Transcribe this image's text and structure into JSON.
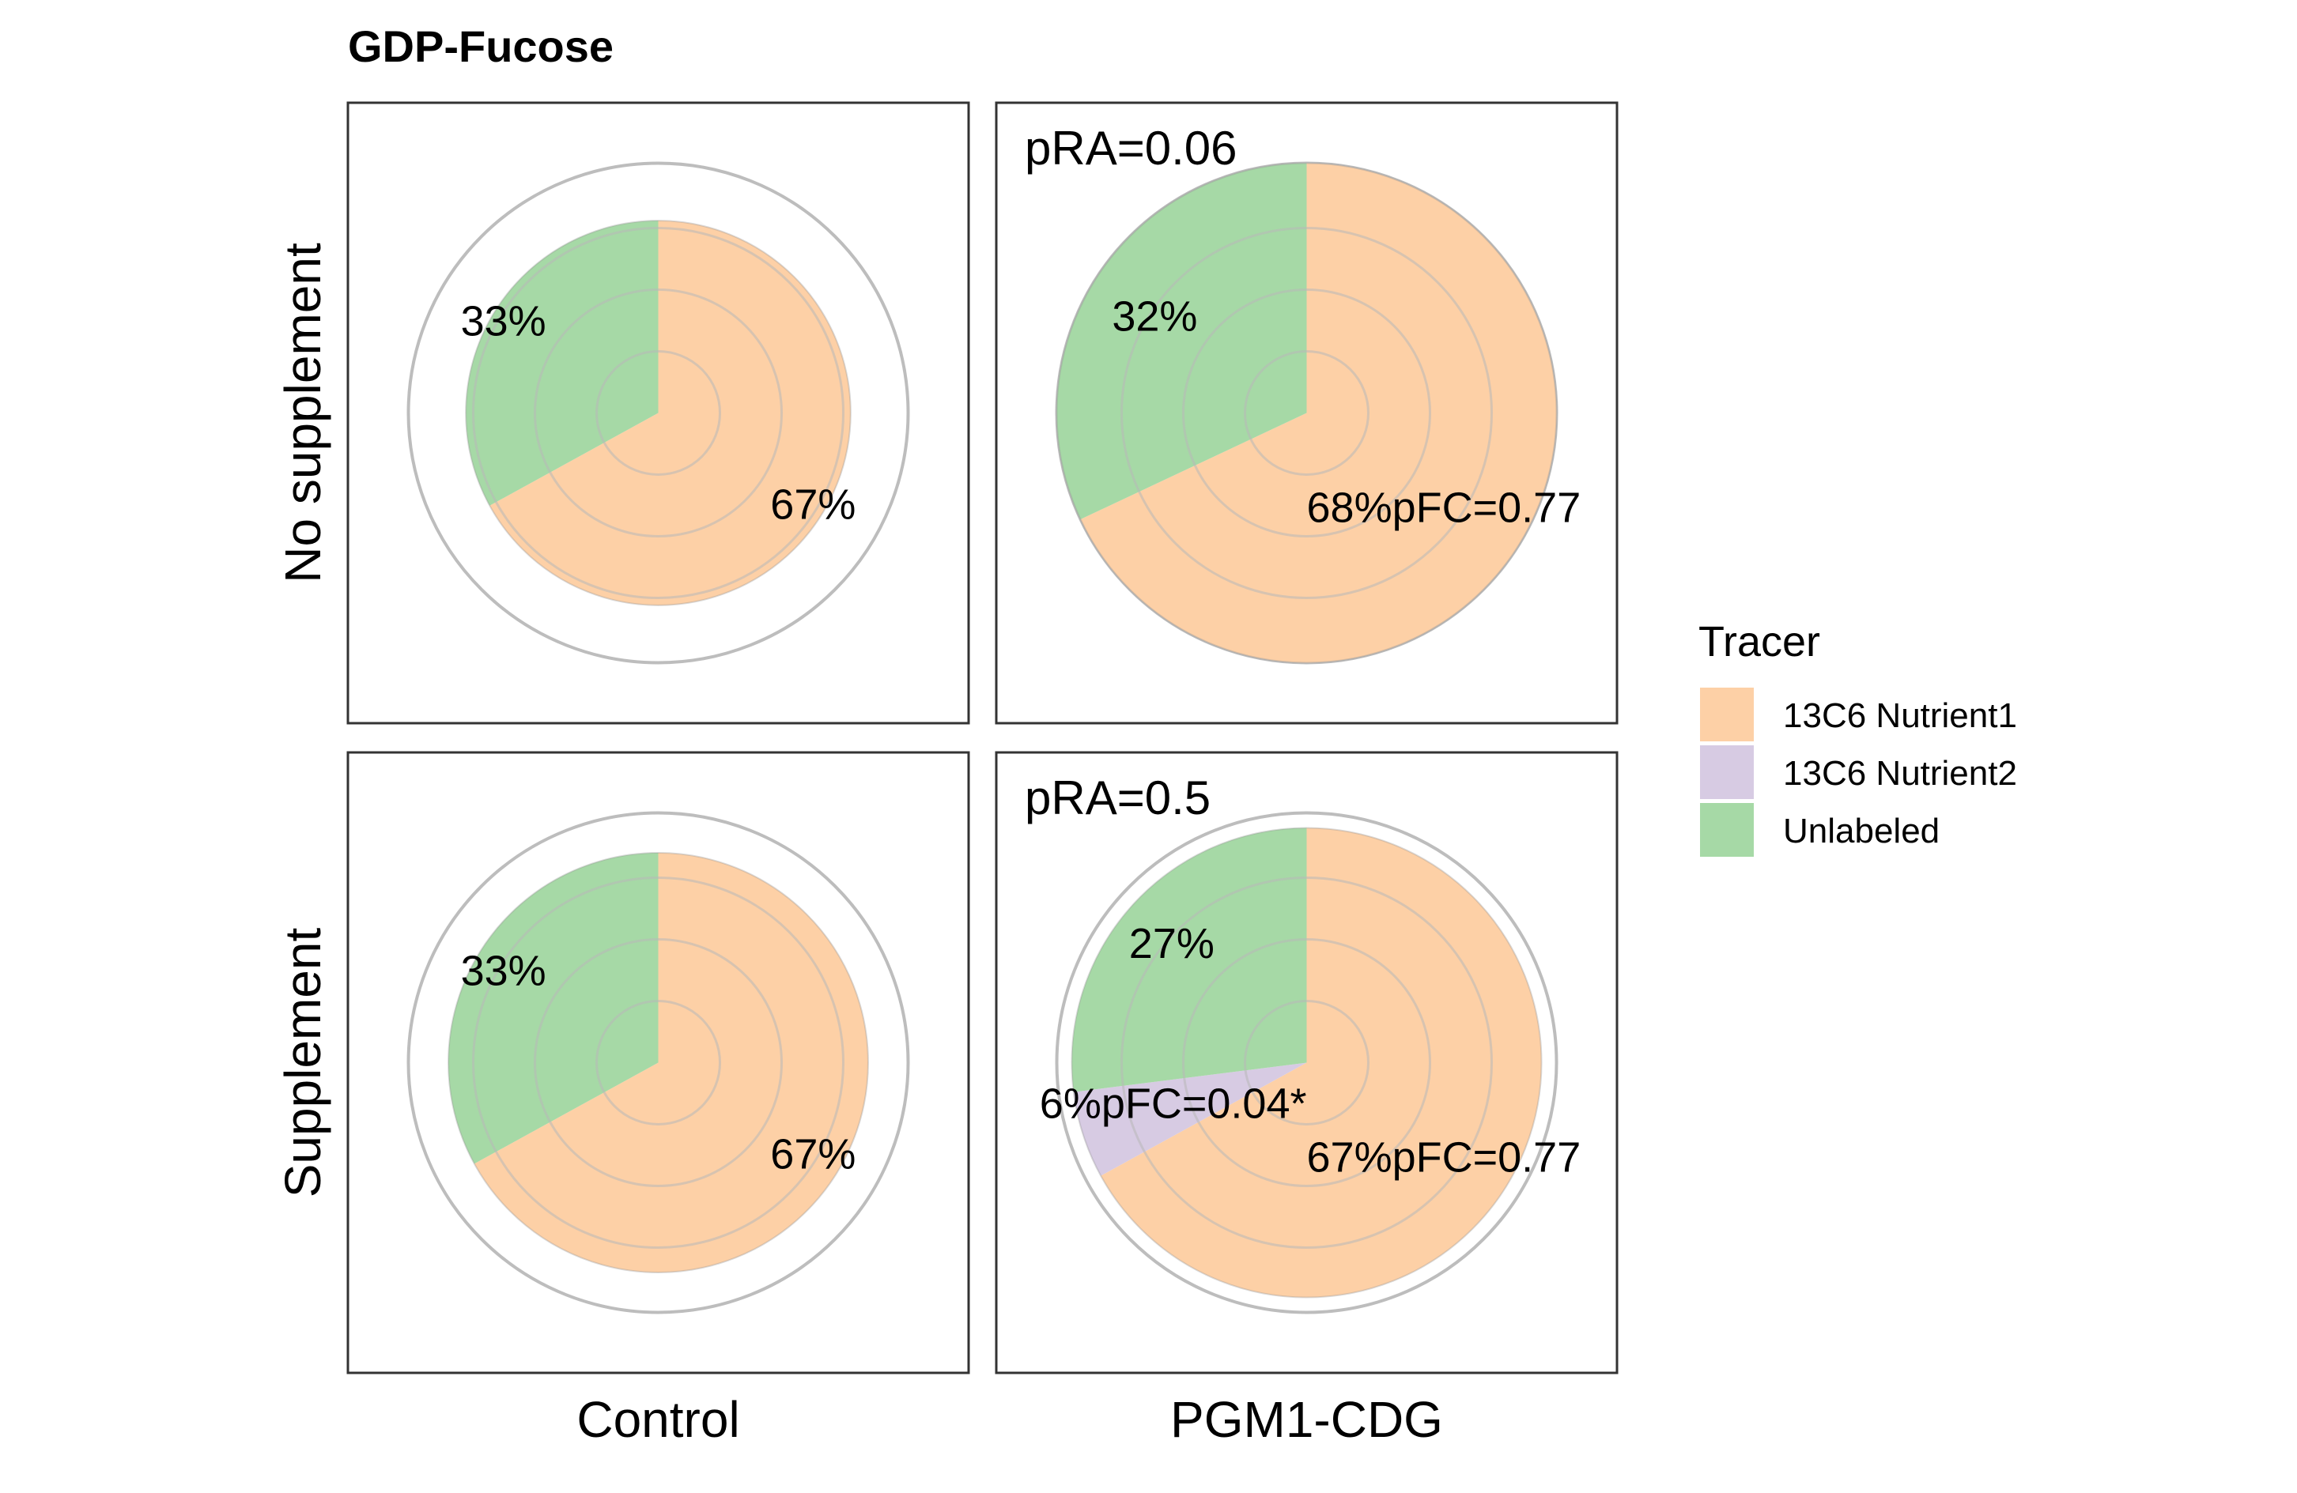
{
  "chart_data": {
    "type": "pie",
    "title": "GDP-Fucose",
    "facet_columns": [
      "Control",
      "PGM1-CDG"
    ],
    "facet_rows": [
      "No supplement",
      "Supplement"
    ],
    "legend": {
      "title": "Tracer",
      "position": "right",
      "entries": [
        "13C6 Nutrient1",
        "13C6 Nutrient2",
        "Unlabeled"
      ]
    },
    "colors": {
      "13C6 Nutrient1": "#fdd0a6",
      "13C6 Nutrient2": "#d7cbe3",
      "Unlabeled": "#a6d9a6",
      "panel_border": "#333333",
      "guide_circle": "#bdbdbd",
      "inner_grid": "#b8b8b8"
    },
    "panels": [
      {
        "row": "No supplement",
        "column": "Control",
        "relative_abundance": 0.77,
        "annotation": "",
        "slices": [
          {
            "tracer": "13C6 Nutrient1",
            "value": 67,
            "label": "67%"
          },
          {
            "tracer": "13C6 Nutrient2",
            "value": 0,
            "label": ""
          },
          {
            "tracer": "Unlabeled",
            "value": 33,
            "label": "33%"
          }
        ]
      },
      {
        "row": "No supplement",
        "column": "PGM1-CDG",
        "relative_abundance": 1.0,
        "annotation": "pRA=0.06",
        "slices": [
          {
            "tracer": "13C6 Nutrient1",
            "value": 68,
            "label": "68%pFC=0.77"
          },
          {
            "tracer": "13C6 Nutrient2",
            "value": 0,
            "label": ""
          },
          {
            "tracer": "Unlabeled",
            "value": 32,
            "label": "32%"
          }
        ]
      },
      {
        "row": "Supplement",
        "column": "Control",
        "relative_abundance": 0.84,
        "annotation": "",
        "slices": [
          {
            "tracer": "13C6 Nutrient1",
            "value": 67,
            "label": "67%"
          },
          {
            "tracer": "13C6 Nutrient2",
            "value": 0,
            "label": ""
          },
          {
            "tracer": "Unlabeled",
            "value": 33,
            "label": "33%"
          }
        ]
      },
      {
        "row": "Supplement",
        "column": "PGM1-CDG",
        "relative_abundance": 0.94,
        "annotation": "pRA=0.5",
        "slices": [
          {
            "tracer": "13C6 Nutrient1",
            "value": 67,
            "label": "67%pFC=0.77"
          },
          {
            "tracer": "13C6 Nutrient2",
            "value": 6,
            "label": "6%pFC=0.04*"
          },
          {
            "tracer": "Unlabeled",
            "value": 27,
            "label": "27%"
          }
        ]
      }
    ]
  }
}
